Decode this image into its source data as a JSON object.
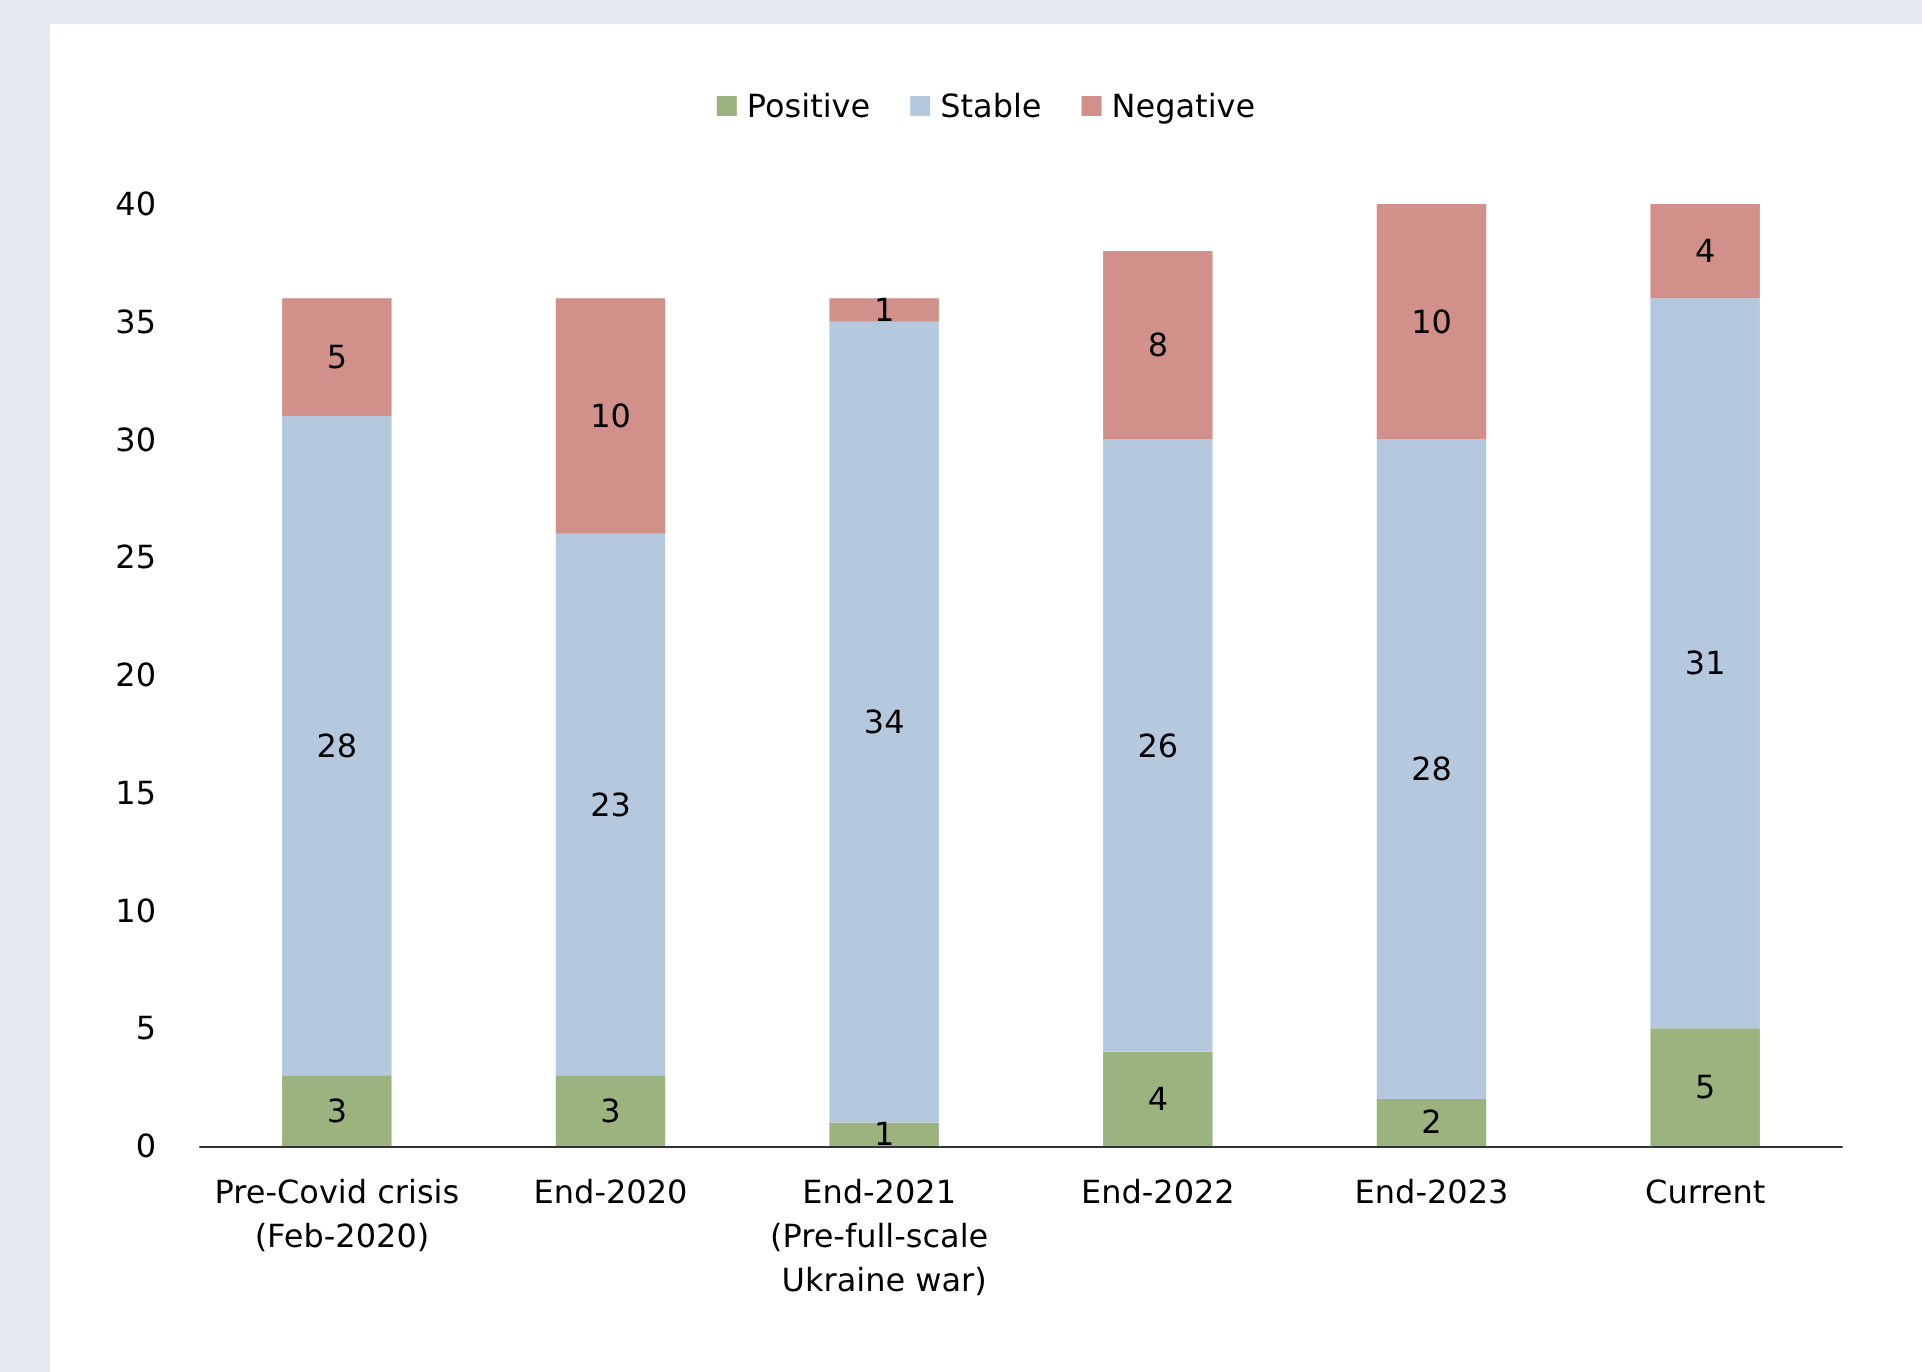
{
  "chart_data": {
    "type": "bar",
    "stacked": true,
    "data_labels": true,
    "legend": "top",
    "grid": false,
    "categories": [
      "Pre-Covid crisis (Feb-2020)",
      "End-2020",
      "End-2021 (Pre-full-scale Ukraine war)",
      "End-2022",
      "End-2023",
      "Current"
    ],
    "series": [
      {
        "name": "Positive",
        "color": "#9bb37f",
        "values": [
          3,
          3,
          1,
          4,
          2,
          5
        ]
      },
      {
        "name": "Stable",
        "color": "#b4c9dd",
        "values": [
          28,
          23,
          34,
          26,
          28,
          31
        ]
      },
      {
        "name": "Negative",
        "color": "#d1918a",
        "values": [
          5,
          10,
          1,
          8,
          10,
          4
        ]
      }
    ],
    "ylim": [
      0,
      40
    ],
    "yticks": [
      0,
      5,
      10,
      15,
      20,
      25,
      30,
      35,
      40
    ]
  }
}
